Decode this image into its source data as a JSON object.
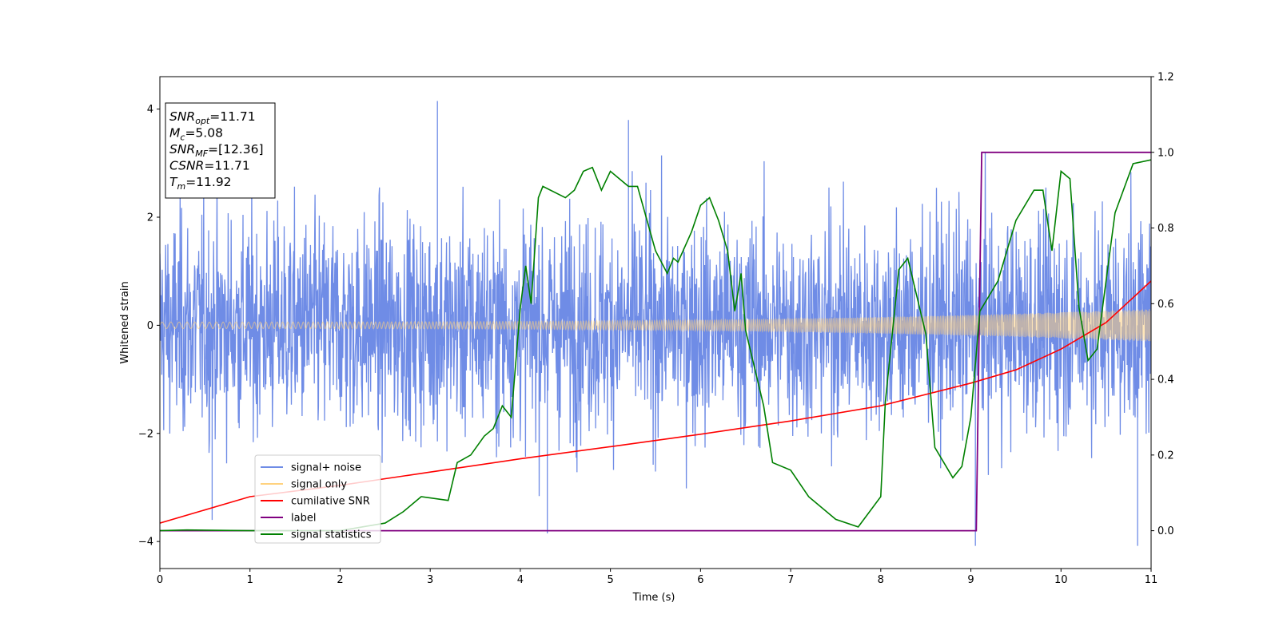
{
  "chart_data": {
    "type": "line",
    "xlabel": "Time (s)",
    "ylabel": "Whitened strain",
    "xlim": [
      0,
      11
    ],
    "ylim_left": [
      -4.5,
      4.6
    ],
    "ylim_right": [
      -0.1,
      1.2
    ],
    "x_ticks": [
      "0",
      "1",
      "2",
      "3",
      "4",
      "5",
      "6",
      "7",
      "8",
      "9",
      "10",
      "11"
    ],
    "y_ticks_left": [
      "4",
      "2",
      "0",
      "−2",
      "−4"
    ],
    "y_ticks_right": [
      "1.2",
      "1.0",
      "0.8",
      "0.6",
      "0.4",
      "0.2",
      "0.0"
    ],
    "grid": false,
    "legend_position": "lower-left",
    "legend": [
      {
        "label": "signal+ noise",
        "color": "#6f8ce6"
      },
      {
        "label": "signal only",
        "color": "#ffd27f"
      },
      {
        "label": "cumilative SNR",
        "color": "#ff0000"
      },
      {
        "label": "label",
        "color": "#800080"
      },
      {
        "label": "signal statistics",
        "color": "#008000"
      }
    ],
    "annotation": {
      "lines": [
        {
          "sym": "SNR",
          "sub": "opt",
          "value": "=11.71"
        },
        {
          "sym": "M",
          "sub": "c",
          "value": "=5.08"
        },
        {
          "sym": "SNR",
          "sub": "MF",
          "value": "=[12.36]"
        },
        {
          "sym": "CSNR",
          "sub": "",
          "value": "=11.71"
        },
        {
          "sym": "T",
          "sub": "m",
          "value": "=11.92"
        }
      ]
    },
    "series": [
      {
        "name": "signal+ noise",
        "axis": "left",
        "noise_sigma": 1.0,
        "spike_values": [
          {
            "x": 3.08,
            "y": 4.15
          },
          {
            "x": 4.3,
            "y": -3.85
          },
          {
            "x": 5.2,
            "y": 3.8
          },
          {
            "x": 9.05,
            "y": -4.08
          },
          {
            "x": 10.85,
            "y": -4.08
          },
          {
            "x": 0.58,
            "y": -3.6
          }
        ]
      },
      {
        "name": "signal only",
        "axis": "left",
        "amplitude_start": 0.06,
        "amplitude_end": 0.3
      },
      {
        "name": "cumilative SNR",
        "axis": "right",
        "x": [
          0,
          1,
          2,
          3,
          4,
          5,
          6,
          7,
          8,
          9,
          9.5,
          10,
          10.5,
          11
        ],
        "y": [
          0.02,
          0.09,
          0.12,
          0.155,
          0.19,
          0.222,
          0.255,
          0.29,
          0.33,
          0.39,
          0.425,
          0.48,
          0.55,
          0.66
        ]
      },
      {
        "name": "label",
        "axis": "right",
        "x": [
          0,
          9.06,
          9.12,
          11
        ],
        "y": [
          0,
          0,
          1,
          1
        ]
      },
      {
        "name": "signal statistics",
        "axis": "right",
        "x": [
          0,
          0.3,
          1.0,
          2.0,
          2.5,
          2.7,
          2.9,
          3.2,
          3.3,
          3.45,
          3.6,
          3.7,
          3.8,
          3.9,
          4.0,
          4.06,
          4.12,
          4.2,
          4.25,
          4.5,
          4.6,
          4.7,
          4.8,
          4.9,
          5.0,
          5.2,
          5.3,
          5.5,
          5.63,
          5.7,
          5.75,
          5.9,
          6.0,
          6.1,
          6.2,
          6.3,
          6.38,
          6.45,
          6.5,
          6.7,
          6.8,
          7.0,
          7.2,
          7.5,
          7.75,
          8.0,
          8.05,
          8.2,
          8.3,
          8.5,
          8.6,
          8.8,
          8.9,
          9.0,
          9.1,
          9.3,
          9.5,
          9.7,
          9.8,
          9.9,
          10.0,
          10.1,
          10.2,
          10.3,
          10.4,
          10.6,
          10.8,
          11.0
        ],
        "y": [
          0,
          0.002,
          0,
          0,
          0.02,
          0.05,
          0.09,
          0.08,
          0.18,
          0.2,
          0.25,
          0.27,
          0.33,
          0.3,
          0.59,
          0.7,
          0.6,
          0.88,
          0.91,
          0.88,
          0.9,
          0.95,
          0.96,
          0.9,
          0.95,
          0.91,
          0.91,
          0.74,
          0.68,
          0.72,
          0.71,
          0.79,
          0.86,
          0.88,
          0.82,
          0.74,
          0.58,
          0.68,
          0.53,
          0.33,
          0.18,
          0.16,
          0.09,
          0.03,
          0.01,
          0.09,
          0.34,
          0.69,
          0.72,
          0.52,
          0.22,
          0.14,
          0.17,
          0.3,
          0.58,
          0.66,
          0.82,
          0.9,
          0.9,
          0.74,
          0.95,
          0.93,
          0.59,
          0.45,
          0.48,
          0.84,
          0.97,
          0.98
        ]
      }
    ]
  }
}
